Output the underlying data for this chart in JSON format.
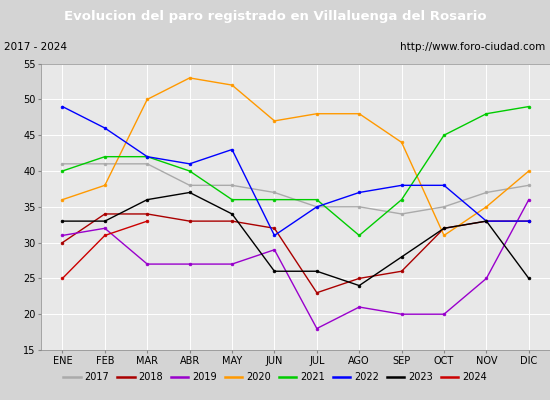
{
  "title": "Evolucion del paro registrado en Villaluenga del Rosario",
  "subtitle_left": "2017 - 2024",
  "subtitle_right": "http://www.foro-ciudad.com",
  "months": [
    "ENE",
    "FEB",
    "MAR",
    "ABR",
    "MAY",
    "JUN",
    "JUL",
    "AGO",
    "SEP",
    "OCT",
    "NOV",
    "DIC"
  ],
  "ylim": [
    15,
    55
  ],
  "yticks": [
    15,
    20,
    25,
    30,
    35,
    40,
    45,
    50,
    55
  ],
  "series": {
    "2017": {
      "color": "#aaaaaa",
      "values": [
        41,
        41,
        41,
        38,
        38,
        37,
        35,
        35,
        34,
        35,
        37,
        38
      ]
    },
    "2018": {
      "color": "#aa0000",
      "values": [
        30,
        34,
        34,
        33,
        33,
        32,
        23,
        25,
        26,
        32,
        33,
        33
      ]
    },
    "2019": {
      "color": "#9900cc",
      "values": [
        31,
        32,
        27,
        27,
        27,
        29,
        18,
        21,
        20,
        20,
        25,
        36
      ]
    },
    "2020": {
      "color": "#ff9900",
      "values": [
        36,
        38,
        50,
        53,
        52,
        47,
        48,
        48,
        44,
        31,
        35,
        40
      ]
    },
    "2021": {
      "color": "#00cc00",
      "values": [
        40,
        42,
        42,
        40,
        36,
        36,
        36,
        31,
        36,
        45,
        48,
        49
      ]
    },
    "2022": {
      "color": "#0000ff",
      "values": [
        49,
        46,
        42,
        41,
        43,
        31,
        35,
        37,
        38,
        38,
        33,
        33
      ]
    },
    "2023": {
      "color": "#000000",
      "values": [
        33,
        33,
        36,
        37,
        34,
        26,
        26,
        24,
        28,
        32,
        33,
        25
      ]
    },
    "2024": {
      "color": "#cc0000",
      "values": [
        25,
        31,
        33,
        null,
        null,
        null,
        null,
        null,
        null,
        null,
        null,
        null
      ]
    }
  },
  "bg_color": "#d4d4d4",
  "plot_bg_color": "#e8e8e8",
  "title_bg_color": "#4466bb",
  "title_color": "#ffffff",
  "subtitle_bg_color": "#ffffff",
  "grid_color": "#ffffff",
  "legend_bg_color": "#f0f0f0",
  "title_fontsize": 9.5,
  "subtitle_fontsize": 7.5,
  "tick_fontsize": 7,
  "legend_fontsize": 7
}
